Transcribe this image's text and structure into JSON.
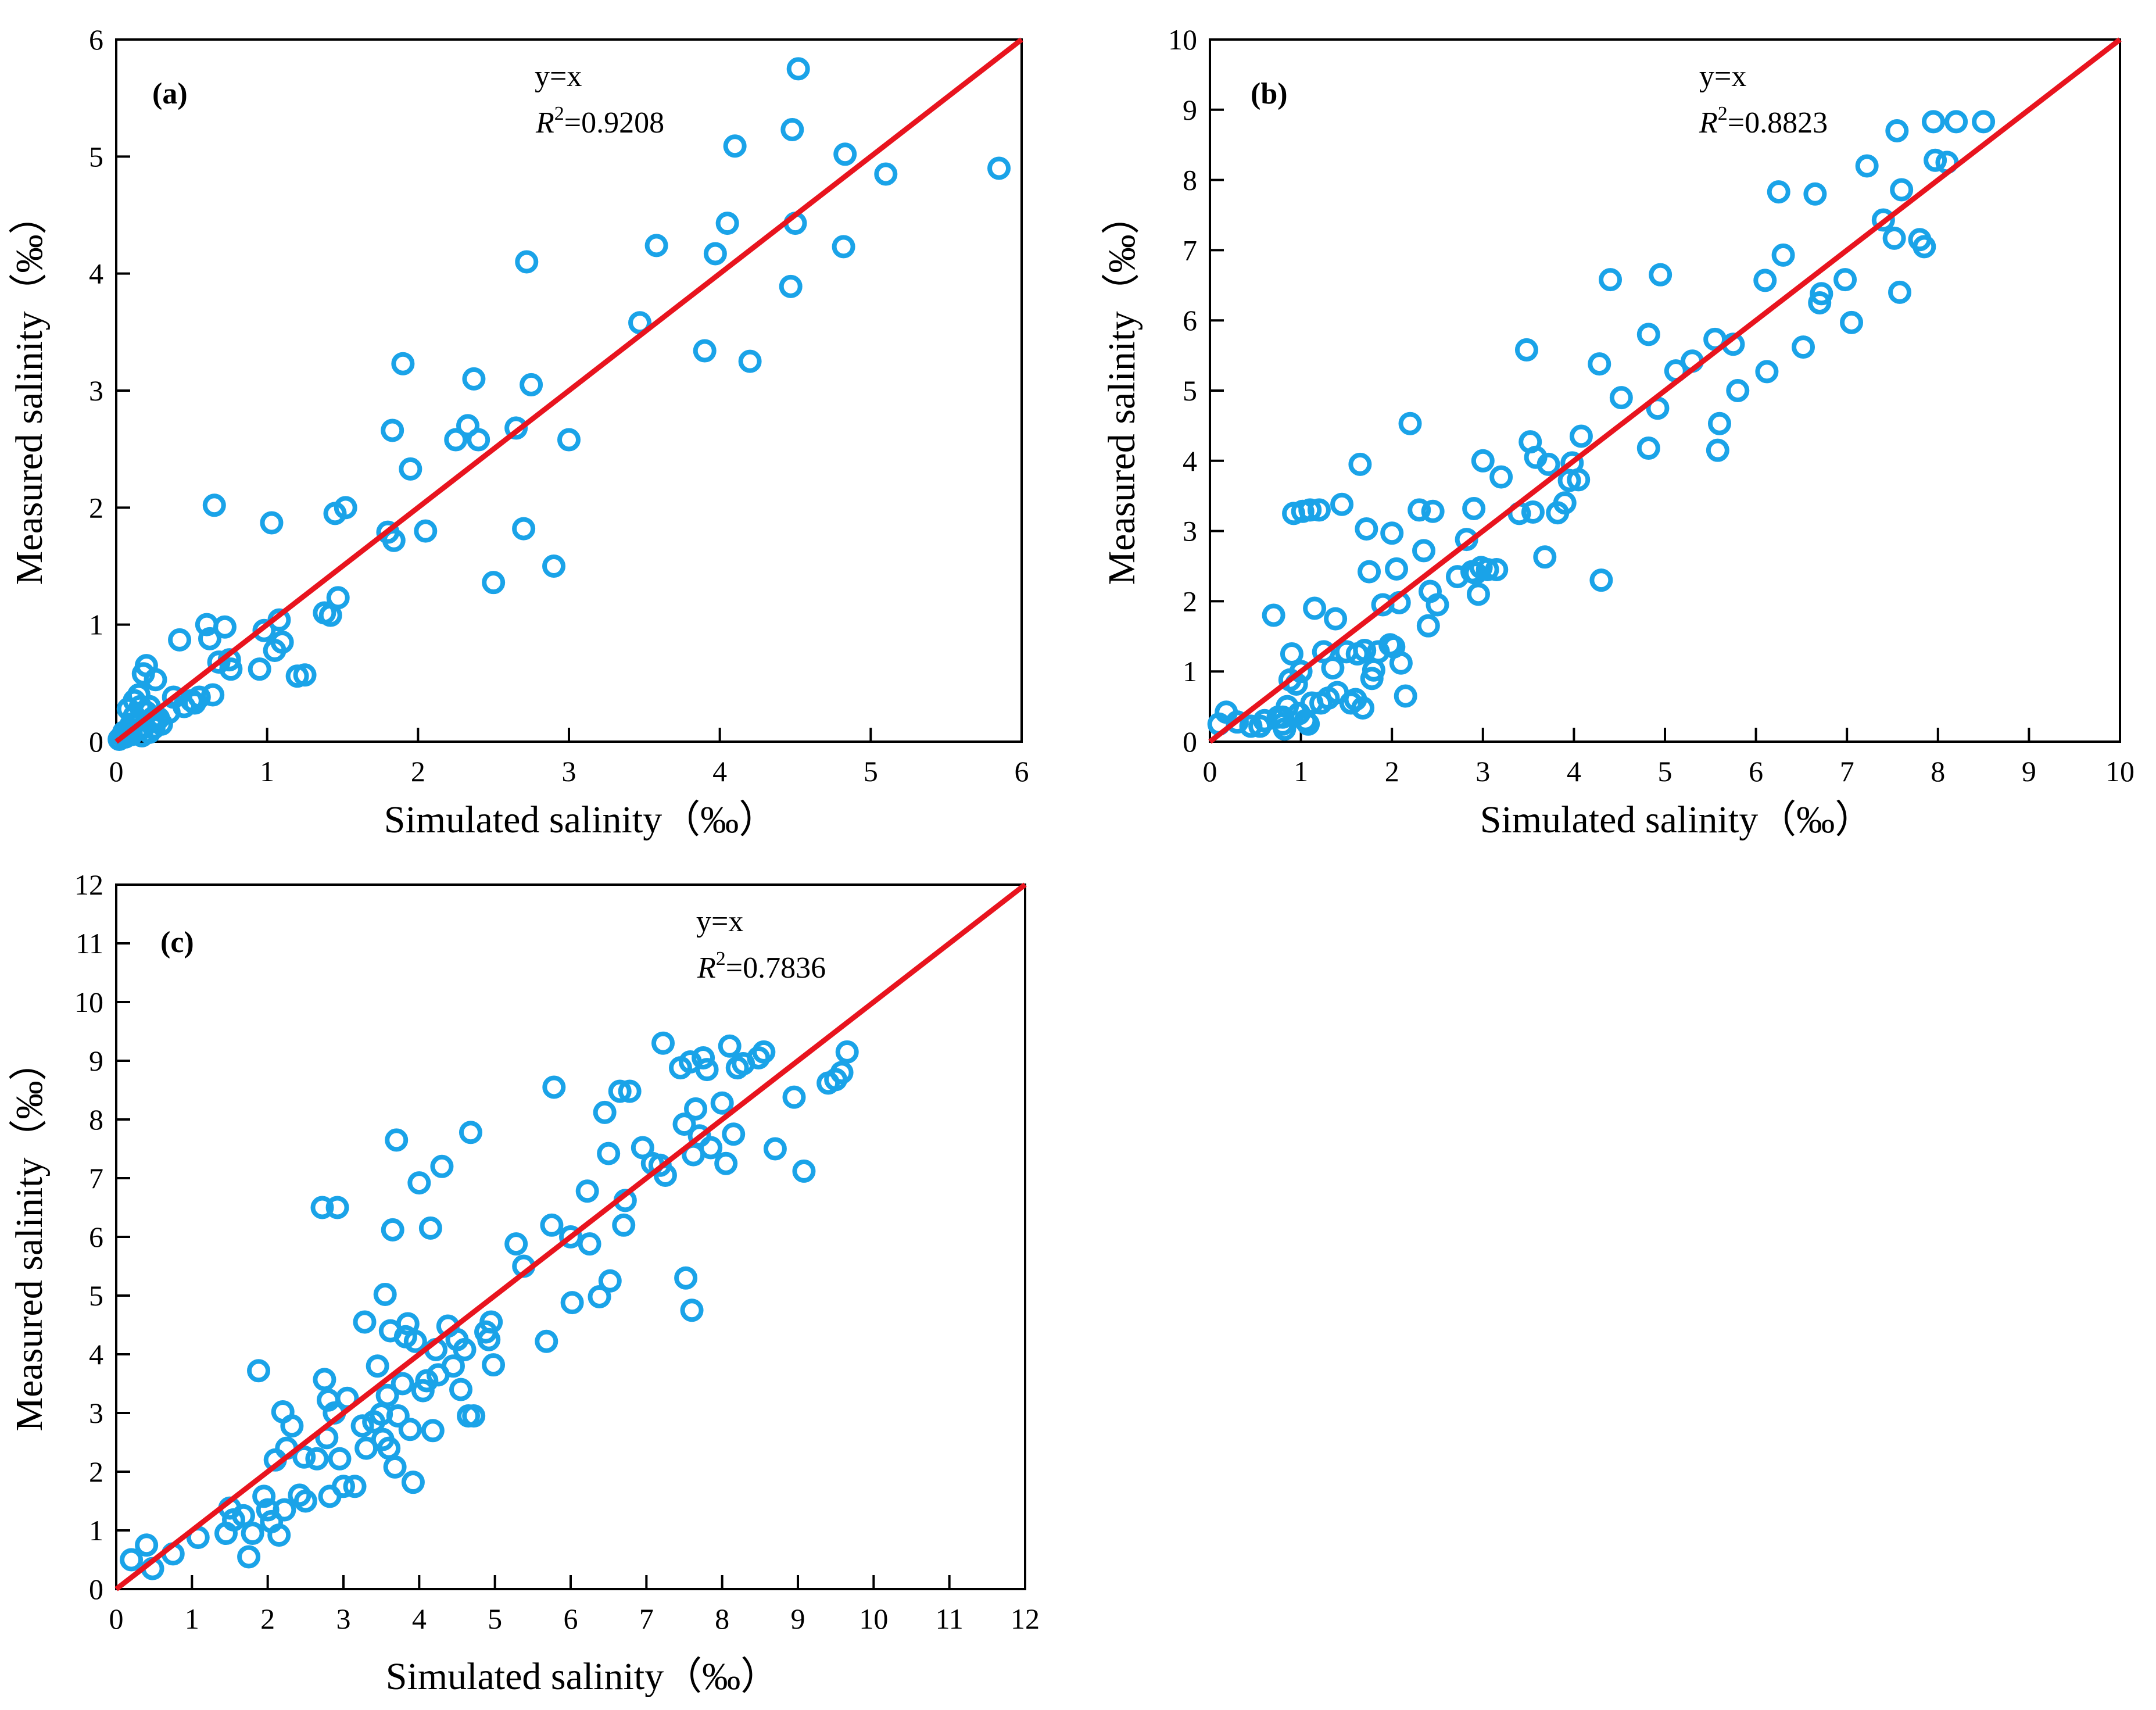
{
  "colors": {
    "points": "#1aa3e8",
    "line": "#e8141e",
    "frame": "#000000"
  },
  "chart_data": [
    {
      "type": "scatter",
      "panel": "(a)",
      "title": "",
      "xlabel": "Simulated salinity（‰）",
      "ylabel": "Measured salinity（‰）",
      "xlim": [
        0,
        6
      ],
      "ylim": [
        0,
        6
      ],
      "xticks": [
        "0",
        "1",
        "2",
        "3",
        "4",
        "5",
        "6"
      ],
      "yticks": [
        "0",
        "1",
        "2",
        "3",
        "4",
        "5",
        "6"
      ],
      "line_label": "y=x",
      "r2_label": "R",
      "r2_sup": "2",
      "r2_value": "=0.9208",
      "line": [
        [
          0,
          0
        ],
        [
          6,
          6
        ]
      ],
      "points": [
        [
          0.02,
          0.02
        ],
        [
          0.04,
          0.05
        ],
        [
          0.05,
          0.08
        ],
        [
          0.06,
          0.04
        ],
        [
          0.08,
          0.1
        ],
        [
          0.08,
          0.28
        ],
        [
          0.1,
          0.06
        ],
        [
          0.1,
          0.15
        ],
        [
          0.12,
          0.22
        ],
        [
          0.12,
          0.35
        ],
        [
          0.14,
          0.1
        ],
        [
          0.15,
          0.4
        ],
        [
          0.15,
          0.18
        ],
        [
          0.16,
          0.3
        ],
        [
          0.17,
          0.05
        ],
        [
          0.18,
          0.58
        ],
        [
          0.18,
          0.12
        ],
        [
          0.2,
          0.65
        ],
        [
          0.2,
          0.25
        ],
        [
          0.22,
          0.3
        ],
        [
          0.22,
          0.08
        ],
        [
          0.24,
          0.2
        ],
        [
          0.25,
          0.12
        ],
        [
          0.26,
          0.53
        ],
        [
          0.28,
          0.2
        ],
        [
          0.3,
          0.15
        ],
        [
          0.35,
          0.25
        ],
        [
          0.38,
          0.38
        ],
        [
          0.42,
          0.87
        ],
        [
          0.45,
          0.3
        ],
        [
          0.5,
          0.35
        ],
        [
          0.52,
          0.33
        ],
        [
          0.55,
          0.38
        ],
        [
          0.6,
          1.0
        ],
        [
          0.62,
          0.88
        ],
        [
          0.64,
          0.4
        ],
        [
          0.65,
          2.02
        ],
        [
          0.68,
          0.68
        ],
        [
          0.72,
          0.98
        ],
        [
          0.75,
          0.7
        ],
        [
          0.76,
          0.62
        ],
        [
          0.95,
          0.62
        ],
        [
          0.98,
          0.95
        ],
        [
          1.03,
          1.87
        ],
        [
          1.05,
          0.78
        ],
        [
          1.08,
          1.04
        ],
        [
          1.1,
          0.85
        ],
        [
          1.2,
          0.56
        ],
        [
          1.25,
          0.57
        ],
        [
          1.38,
          1.1
        ],
        [
          1.42,
          1.08
        ],
        [
          1.45,
          1.95
        ],
        [
          1.47,
          1.23
        ],
        [
          1.52,
          2.0
        ],
        [
          1.8,
          1.79
        ],
        [
          1.83,
          2.66
        ],
        [
          1.84,
          1.72
        ],
        [
          1.9,
          3.23
        ],
        [
          1.95,
          2.33
        ],
        [
          2.05,
          1.8
        ],
        [
          2.25,
          2.58
        ],
        [
          2.33,
          2.7
        ],
        [
          2.37,
          3.1
        ],
        [
          2.4,
          2.58
        ],
        [
          2.5,
          1.36
        ],
        [
          2.65,
          2.68
        ],
        [
          2.7,
          1.82
        ],
        [
          2.72,
          4.1
        ],
        [
          2.75,
          3.05
        ],
        [
          2.9,
          1.5
        ],
        [
          3.0,
          2.58
        ],
        [
          3.47,
          3.58
        ],
        [
          3.58,
          4.24
        ],
        [
          3.9,
          3.34
        ],
        [
          3.97,
          4.17
        ],
        [
          4.05,
          4.43
        ],
        [
          4.1,
          5.09
        ],
        [
          4.2,
          3.25
        ],
        [
          4.47,
          3.89
        ],
        [
          4.48,
          5.23
        ],
        [
          4.5,
          4.43
        ],
        [
          4.52,
          5.75
        ],
        [
          4.82,
          4.23
        ],
        [
          4.83,
          5.02
        ],
        [
          5.1,
          4.85
        ],
        [
          5.85,
          4.9
        ]
      ]
    },
    {
      "type": "scatter",
      "panel": "(b)",
      "title": "",
      "xlabel": "Simulated salinity（‰）",
      "ylabel": "Measured salinity（‰）",
      "xlim": [
        0,
        10
      ],
      "ylim": [
        0,
        10
      ],
      "xticks": [
        "0",
        "1",
        "2",
        "3",
        "4",
        "5",
        "6",
        "7",
        "8",
        "9",
        "10"
      ],
      "yticks": [
        "0",
        "1",
        "2",
        "3",
        "4",
        "5",
        "6",
        "7",
        "8",
        "9",
        "10"
      ],
      "line_label": "y=x",
      "r2_label": "R",
      "r2_sup": "2",
      "r2_value": "=0.8823",
      "line": [
        [
          0,
          0
        ],
        [
          10,
          10
        ]
      ],
      "points": [
        [
          0.1,
          0.25
        ],
        [
          0.18,
          0.42
        ],
        [
          0.3,
          0.28
        ],
        [
          0.45,
          0.22
        ],
        [
          0.55,
          0.22
        ],
        [
          0.6,
          0.3
        ],
        [
          0.7,
          1.8
        ],
        [
          0.75,
          0.35
        ],
        [
          0.8,
          0.35
        ],
        [
          0.8,
          0.25
        ],
        [
          0.82,
          0.18
        ],
        [
          0.85,
          0.5
        ],
        [
          0.88,
          0.88
        ],
        [
          0.9,
          1.25
        ],
        [
          0.92,
          3.25
        ],
        [
          0.95,
          0.82
        ],
        [
          0.98,
          0.4
        ],
        [
          1.0,
          1.0
        ],
        [
          1.02,
          3.28
        ],
        [
          1.05,
          0.3
        ],
        [
          1.08,
          0.25
        ],
        [
          1.1,
          3.3
        ],
        [
          1.12,
          0.55
        ],
        [
          1.15,
          1.9
        ],
        [
          1.2,
          3.3
        ],
        [
          1.22,
          0.55
        ],
        [
          1.25,
          1.28
        ],
        [
          1.3,
          0.62
        ],
        [
          1.35,
          1.05
        ],
        [
          1.38,
          1.75
        ],
        [
          1.4,
          0.7
        ],
        [
          1.45,
          3.38
        ],
        [
          1.5,
          1.28
        ],
        [
          1.55,
          0.55
        ],
        [
          1.6,
          0.6
        ],
        [
          1.62,
          1.25
        ],
        [
          1.65,
          3.95
        ],
        [
          1.68,
          0.48
        ],
        [
          1.7,
          1.3
        ],
        [
          1.72,
          3.03
        ],
        [
          1.75,
          2.42
        ],
        [
          1.78,
          0.9
        ],
        [
          1.8,
          1.02
        ],
        [
          1.85,
          1.28
        ],
        [
          1.9,
          1.95
        ],
        [
          1.98,
          1.38
        ],
        [
          2.0,
          2.97
        ],
        [
          2.02,
          1.35
        ],
        [
          2.05,
          2.46
        ],
        [
          2.08,
          1.98
        ],
        [
          2.1,
          1.12
        ],
        [
          2.15,
          0.65
        ],
        [
          2.2,
          4.53
        ],
        [
          2.3,
          3.3
        ],
        [
          2.35,
          2.72
        ],
        [
          2.4,
          1.65
        ],
        [
          2.42,
          2.14
        ],
        [
          2.45,
          3.28
        ],
        [
          2.5,
          1.95
        ],
        [
          2.72,
          2.35
        ],
        [
          2.82,
          2.88
        ],
        [
          2.88,
          2.42
        ],
        [
          2.9,
          3.32
        ],
        [
          2.92,
          2.4
        ],
        [
          2.95,
          2.1
        ],
        [
          2.98,
          2.48
        ],
        [
          3.0,
          4.0
        ],
        [
          3.05,
          2.45
        ],
        [
          3.15,
          2.45
        ],
        [
          3.2,
          3.77
        ],
        [
          3.4,
          3.25
        ],
        [
          3.48,
          5.58
        ],
        [
          3.52,
          4.27
        ],
        [
          3.55,
          3.27
        ],
        [
          3.58,
          4.05
        ],
        [
          3.68,
          2.63
        ],
        [
          3.72,
          3.95
        ],
        [
          3.82,
          3.26
        ],
        [
          3.9,
          3.4
        ],
        [
          3.95,
          3.72
        ],
        [
          3.98,
          3.97
        ],
        [
          4.05,
          3.73
        ],
        [
          4.08,
          4.35
        ],
        [
          4.28,
          5.38
        ],
        [
          4.3,
          2.3
        ],
        [
          4.4,
          6.58
        ],
        [
          4.52,
          4.9
        ],
        [
          4.82,
          5.8
        ],
        [
          4.82,
          4.18
        ],
        [
          4.92,
          4.75
        ],
        [
          4.95,
          6.65
        ],
        [
          5.12,
          5.28
        ],
        [
          5.3,
          5.42
        ],
        [
          5.55,
          5.73
        ],
        [
          5.58,
          4.15
        ],
        [
          5.6,
          4.53
        ],
        [
          5.75,
          5.66
        ],
        [
          5.8,
          5.0
        ],
        [
          6.1,
          6.57
        ],
        [
          6.12,
          5.27
        ],
        [
          6.25,
          7.83
        ],
        [
          6.3,
          6.93
        ],
        [
          6.52,
          5.62
        ],
        [
          6.65,
          7.8
        ],
        [
          6.7,
          6.25
        ],
        [
          6.72,
          6.38
        ],
        [
          6.98,
          6.58
        ],
        [
          7.05,
          5.97
        ],
        [
          7.22,
          8.2
        ],
        [
          7.4,
          7.43
        ],
        [
          7.52,
          7.17
        ],
        [
          7.55,
          8.7
        ],
        [
          7.58,
          6.4
        ],
        [
          7.6,
          7.86
        ],
        [
          7.8,
          7.15
        ],
        [
          7.85,
          7.05
        ],
        [
          7.95,
          8.83
        ],
        [
          7.97,
          8.28
        ],
        [
          8.1,
          8.25
        ],
        [
          8.2,
          8.83
        ],
        [
          8.5,
          8.83
        ]
      ]
    },
    {
      "type": "scatter",
      "panel": "(c)",
      "title": "",
      "xlabel": "Simulated salinity（‰）",
      "ylabel": "Measured salinity（‰）",
      "xlim": [
        0,
        12
      ],
      "ylim": [
        0,
        12
      ],
      "xticks": [
        "0",
        "1",
        "2",
        "3",
        "4",
        "5",
        "6",
        "7",
        "8",
        "9",
        "10",
        "11",
        "12"
      ],
      "yticks": [
        "0",
        "1",
        "2",
        "3",
        "4",
        "5",
        "6",
        "7",
        "8",
        "9",
        "10",
        "11",
        "12"
      ],
      "line_label": "y=x",
      "r2_label": "R",
      "r2_sup": "2",
      "r2_value": "=0.7836",
      "line": [
        [
          0,
          0
        ],
        [
          12,
          12
        ]
      ],
      "points": [
        [
          0.2,
          0.5
        ],
        [
          0.4,
          0.75
        ],
        [
          0.48,
          0.35
        ],
        [
          0.75,
          0.6
        ],
        [
          1.08,
          0.88
        ],
        [
          1.45,
          0.95
        ],
        [
          1.5,
          1.38
        ],
        [
          1.55,
          1.18
        ],
        [
          1.68,
          1.25
        ],
        [
          1.75,
          0.55
        ],
        [
          1.8,
          0.95
        ],
        [
          1.88,
          3.72
        ],
        [
          1.95,
          1.58
        ],
        [
          2.0,
          1.35
        ],
        [
          2.05,
          1.15
        ],
        [
          2.1,
          2.2
        ],
        [
          2.15,
          0.92
        ],
        [
          2.2,
          3.02
        ],
        [
          2.22,
          1.35
        ],
        [
          2.25,
          2.4
        ],
        [
          2.32,
          2.78
        ],
        [
          2.42,
          1.6
        ],
        [
          2.48,
          2.25
        ],
        [
          2.5,
          1.5
        ],
        [
          2.65,
          2.22
        ],
        [
          2.72,
          6.5
        ],
        [
          2.75,
          3.57
        ],
        [
          2.78,
          2.58
        ],
        [
          2.8,
          3.22
        ],
        [
          2.82,
          1.58
        ],
        [
          2.88,
          3.0
        ],
        [
          2.92,
          6.5
        ],
        [
          2.95,
          2.22
        ],
        [
          3.0,
          1.75
        ],
        [
          3.05,
          3.25
        ],
        [
          3.15,
          1.75
        ],
        [
          3.25,
          2.78
        ],
        [
          3.28,
          4.55
        ],
        [
          3.3,
          2.4
        ],
        [
          3.4,
          2.85
        ],
        [
          3.45,
          3.8
        ],
        [
          3.5,
          2.98
        ],
        [
          3.52,
          2.55
        ],
        [
          3.55,
          5.02
        ],
        [
          3.58,
          3.3
        ],
        [
          3.6,
          2.4
        ],
        [
          3.62,
          4.4
        ],
        [
          3.65,
          6.12
        ],
        [
          3.68,
          2.08
        ],
        [
          3.7,
          7.65
        ],
        [
          3.72,
          2.95
        ],
        [
          3.78,
          3.5
        ],
        [
          3.82,
          4.3
        ],
        [
          3.85,
          4.52
        ],
        [
          3.88,
          2.72
        ],
        [
          3.92,
          1.82
        ],
        [
          3.95,
          4.22
        ],
        [
          4.0,
          6.92
        ],
        [
          4.05,
          3.38
        ],
        [
          4.1,
          3.55
        ],
        [
          4.15,
          6.15
        ],
        [
          4.18,
          2.7
        ],
        [
          4.22,
          4.08
        ],
        [
          4.25,
          3.65
        ],
        [
          4.3,
          7.2
        ],
        [
          4.38,
          4.48
        ],
        [
          4.45,
          3.8
        ],
        [
          4.5,
          4.25
        ],
        [
          4.55,
          3.4
        ],
        [
          4.6,
          4.08
        ],
        [
          4.65,
          2.95
        ],
        [
          4.68,
          7.78
        ],
        [
          4.72,
          2.95
        ],
        [
          4.88,
          4.38
        ],
        [
          4.92,
          4.25
        ],
        [
          4.95,
          4.55
        ],
        [
          4.98,
          3.82
        ],
        [
          5.28,
          5.88
        ],
        [
          5.38,
          5.5
        ],
        [
          5.68,
          4.22
        ],
        [
          5.75,
          6.2
        ],
        [
          5.78,
          8.55
        ],
        [
          6.0,
          6.0
        ],
        [
          6.02,
          4.88
        ],
        [
          6.22,
          6.78
        ],
        [
          6.25,
          5.88
        ],
        [
          6.38,
          4.98
        ],
        [
          6.45,
          8.12
        ],
        [
          6.5,
          7.42
        ],
        [
          6.52,
          5.25
        ],
        [
          6.65,
          8.48
        ],
        [
          6.7,
          6.2
        ],
        [
          6.72,
          6.62
        ],
        [
          6.78,
          8.48
        ],
        [
          6.95,
          7.52
        ],
        [
          7.08,
          7.25
        ],
        [
          7.18,
          7.22
        ],
        [
          7.22,
          9.3
        ],
        [
          7.25,
          7.05
        ],
        [
          7.45,
          8.88
        ],
        [
          7.5,
          7.92
        ],
        [
          7.52,
          5.3
        ],
        [
          7.58,
          8.98
        ],
        [
          7.6,
          4.75
        ],
        [
          7.62,
          7.4
        ],
        [
          7.65,
          8.18
        ],
        [
          7.7,
          7.72
        ],
        [
          7.75,
          9.05
        ],
        [
          7.8,
          8.85
        ],
        [
          7.85,
          7.52
        ],
        [
          8.0,
          8.28
        ],
        [
          8.05,
          7.25
        ],
        [
          8.1,
          9.25
        ],
        [
          8.15,
          7.75
        ],
        [
          8.2,
          8.88
        ],
        [
          8.28,
          8.95
        ],
        [
          8.48,
          9.05
        ],
        [
          8.55,
          9.15
        ],
        [
          8.7,
          7.5
        ],
        [
          8.95,
          8.38
        ],
        [
          9.08,
          7.12
        ],
        [
          9.4,
          8.62
        ],
        [
          9.5,
          8.68
        ],
        [
          9.58,
          8.8
        ],
        [
          9.65,
          9.15
        ]
      ]
    }
  ]
}
